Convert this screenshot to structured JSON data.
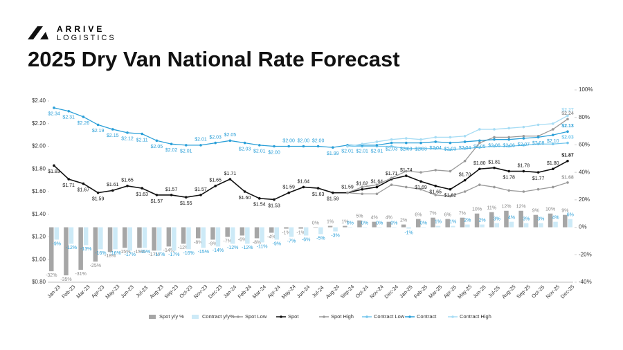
{
  "logo": {
    "line1": "ARRIVE",
    "line2": "LOGISTICS"
  },
  "chart_data": {
    "type": "combo",
    "title": "2025 Dry Van National Rate Forecast",
    "categories": [
      "Jan-23",
      "Feb-23",
      "Mar-23",
      "Apr-23",
      "May-23",
      "Jun-23",
      "Jul-23",
      "Aug-23",
      "Sep-23",
      "Oct-23",
      "Nov-23",
      "Dec-23",
      "Jan-24",
      "Feb-24",
      "Mar-24",
      "Apr-24",
      "May-24",
      "Jun-24",
      "Jul-24",
      "Aug-24",
      "Sep-24",
      "Oct-24",
      "Nov-24",
      "Dec-24",
      "Jan-25",
      "Feb-25",
      "Mar-25",
      "Apr-25",
      "May-25",
      "Jun-25",
      "Jul-25",
      "Aug-25",
      "Sep-25",
      "Oct-25",
      "Nov-25",
      "Dec-25"
    ],
    "ylim": [
      0.8,
      2.4
    ],
    "yticks": [
      {
        "value": 0.8,
        "label": "$0.80"
      },
      {
        "value": 1.0,
        "label": "$1.00"
      },
      {
        "value": 1.2,
        "label": "$1.20"
      },
      {
        "value": 1.4,
        "label": "$1.40"
      },
      {
        "value": 1.6,
        "label": "$1.60"
      },
      {
        "value": 1.8,
        "label": "$1.80"
      },
      {
        "value": 2.0,
        "label": "$2.00"
      },
      {
        "value": 2.2,
        "label": "$2.20"
      },
      {
        "value": 2.4,
        "label": "$2.40"
      }
    ],
    "y2lim": [
      -40,
      100
    ],
    "y2ticks": [
      {
        "value": -40,
        "label": "-40%"
      },
      {
        "value": -20,
        "label": "-20%"
      },
      {
        "value": 0,
        "label": "0%"
      },
      {
        "value": 20,
        "label": "20%"
      },
      {
        "value": 40,
        "label": "40%"
      },
      {
        "value": 60,
        "label": "60%"
      },
      {
        "value": 80,
        "label": "80%"
      },
      {
        "value": 100,
        "label": "100%"
      }
    ],
    "series": [
      {
        "name": "Spot y/y %",
        "kind": "bar",
        "axis": "y2",
        "color": "#a6a6a6",
        "values": [
          -32,
          -35,
          -31,
          -25,
          -18,
          -15,
          -15,
          -17,
          -14,
          -12,
          -8,
          -9,
          -7,
          -6,
          -8,
          -4,
          -1,
          -1,
          0,
          1,
          1,
          5,
          4,
          4,
          2,
          6,
          7,
          6,
          7,
          10,
          11,
          12,
          12,
          9,
          10,
          9
        ],
        "value_labels": [
          "-32%",
          "-35%",
          "-31%",
          "-25%",
          "-18%",
          "-15%",
          "-15%",
          "-17%",
          "-14%",
          "-12%",
          "-8%",
          "-9%",
          "-7%",
          "-6%",
          "-8%",
          "-4%",
          "-1%",
          "-1%",
          "0%",
          "1%",
          "1%",
          "5%",
          "4%",
          "4%",
          "2%",
          "6%",
          "7%",
          "6%",
          "7%",
          "10%",
          "11%",
          "12%",
          "12%",
          "9%",
          "10%",
          "9%"
        ]
      },
      {
        "name": "Contract y/y%",
        "kind": "bar",
        "axis": "y2",
        "color": "#cdeaf7",
        "values": [
          -9,
          -12,
          -13,
          -16,
          -16,
          -17,
          -15,
          -17,
          -17,
          -16,
          -15,
          -14,
          -12,
          -12,
          -11,
          -9,
          -7,
          -6,
          -5,
          -3,
          0,
          0,
          0,
          0,
          -1,
          0,
          1,
          1,
          2,
          2,
          3,
          4,
          3,
          3,
          4,
          6
        ],
        "value_labels": [
          "-9%",
          "-12%",
          "-13%",
          "-16%",
          "-16%",
          "-17%",
          "-15%",
          "-17%",
          "-17%",
          "-16%",
          "-15%",
          "-14%",
          "-12%",
          "-12%",
          "-11%",
          "-9%",
          "-7%",
          "-6%",
          "-5%",
          "-3%",
          "0%",
          "0%",
          "0%",
          "0%",
          "-1%",
          "0%",
          "1%",
          "1%",
          "2%",
          "2%",
          "3%",
          "4%",
          "3%",
          "3%",
          "4%",
          "6%"
        ]
      },
      {
        "name": "Spot Low",
        "kind": "line",
        "color": "#9a9a9a",
        "values": [
          null,
          null,
          null,
          null,
          null,
          null,
          null,
          null,
          null,
          null,
          null,
          null,
          null,
          null,
          null,
          null,
          null,
          null,
          null,
          null,
          1.59,
          1.58,
          1.58,
          1.66,
          1.64,
          1.62,
          1.57,
          1.56,
          1.6,
          1.66,
          1.64,
          1.61,
          1.6,
          1.62,
          1.64,
          1.68
        ],
        "value_labels": [
          null,
          null,
          null,
          null,
          null,
          null,
          null,
          null,
          null,
          null,
          null,
          null,
          null,
          null,
          null,
          null,
          null,
          null,
          null,
          null,
          null,
          null,
          null,
          null,
          null,
          null,
          null,
          null,
          null,
          null,
          null,
          null,
          null,
          null,
          null,
          "$1.68"
        ]
      },
      {
        "name": "Spot",
        "kind": "line",
        "color": "#111111",
        "values": [
          1.83,
          1.71,
          1.67,
          1.59,
          1.61,
          1.65,
          1.63,
          1.57,
          1.57,
          1.55,
          1.57,
          1.65,
          1.71,
          1.6,
          1.54,
          1.53,
          1.59,
          1.64,
          1.63,
          1.59,
          1.59,
          1.62,
          1.64,
          1.71,
          1.74,
          1.69,
          1.65,
          1.62,
          1.7,
          1.8,
          1.81,
          1.78,
          1.78,
          1.77,
          1.8,
          1.87
        ],
        "value_labels": [
          "$1.83",
          "$1.71",
          "$1.67",
          "$1.59",
          "$1.61",
          "$1.65",
          "$1.63",
          "$1.57",
          "$1.57",
          "$1.55",
          "$1.57",
          "$1.65",
          "$1.71",
          "$1.60",
          "$1.54",
          "$1.53",
          "$1.59",
          "$1.64",
          "$1.63",
          "$1.59",
          "$1.59",
          "$1.62",
          "$1.64",
          "$1.71",
          "$1.74",
          "$1.69",
          "$1.65",
          "$1.62",
          "$1.70",
          "$1.80",
          "$1.81",
          "$1.78",
          "$1.78",
          "$1.77",
          "$1.80",
          "$1.87"
        ]
      },
      {
        "name": "Spot High",
        "kind": "line",
        "color": "#9a9a9a",
        "values": [
          null,
          null,
          null,
          null,
          null,
          null,
          null,
          null,
          null,
          null,
          null,
          null,
          null,
          null,
          null,
          null,
          null,
          null,
          null,
          null,
          1.59,
          1.64,
          1.66,
          1.72,
          1.78,
          1.77,
          1.79,
          1.78,
          1.87,
          2.03,
          2.08,
          2.08,
          2.09,
          2.09,
          2.15,
          2.24
        ],
        "value_labels": [
          null,
          null,
          null,
          null,
          null,
          null,
          null,
          null,
          null,
          null,
          null,
          null,
          null,
          null,
          null,
          null,
          null,
          null,
          null,
          null,
          null,
          null,
          null,
          null,
          null,
          null,
          null,
          null,
          null,
          null,
          null,
          null,
          null,
          null,
          null,
          "$2.24"
        ]
      },
      {
        "name": "Contract Low",
        "kind": "line",
        "color": "#74c6ec",
        "values": [
          null,
          null,
          null,
          null,
          null,
          null,
          null,
          null,
          null,
          null,
          null,
          null,
          null,
          null,
          null,
          null,
          null,
          null,
          null,
          null,
          2.0,
          2.0,
          2.0,
          2.0,
          1.98,
          1.98,
          1.98,
          1.97,
          1.98,
          1.99,
          2.0,
          2.0,
          2.01,
          2.02,
          2.02,
          2.03
        ],
        "value_labels": [
          null,
          null,
          null,
          null,
          null,
          null,
          null,
          null,
          null,
          null,
          null,
          null,
          null,
          null,
          null,
          null,
          null,
          null,
          null,
          null,
          null,
          null,
          null,
          null,
          null,
          null,
          null,
          null,
          null,
          null,
          null,
          null,
          null,
          null,
          null,
          "$2.03"
        ]
      },
      {
        "name": "Contract",
        "kind": "line",
        "color": "#2a9fd8",
        "values": [
          2.34,
          2.31,
          2.26,
          2.19,
          2.15,
          2.12,
          2.11,
          2.05,
          2.02,
          2.01,
          2.01,
          2.03,
          2.05,
          2.03,
          2.01,
          2.0,
          2.0,
          2.0,
          2.0,
          1.99,
          2.01,
          2.01,
          2.01,
          2.03,
          2.03,
          2.03,
          2.04,
          2.03,
          2.04,
          2.05,
          2.06,
          2.06,
          2.07,
          2.08,
          2.1,
          2.13
        ],
        "value_labels": [
          "$2.34",
          "$2.31",
          "$2.26",
          "$2.19",
          "$2.15",
          "$2.12",
          "$2.11",
          "$2.05",
          "$2.02",
          "$2.01",
          "$2.01",
          "$2.03",
          "$2.05",
          "$2.03",
          "$2.01",
          "$2.00",
          "$2.00",
          "$2.00",
          "$2.00",
          "$1.99",
          "$2.01",
          "$2.01",
          "$2.01",
          "$2.03",
          "$2.03",
          "$2.03",
          "$2.04",
          "$2.03",
          "$2.04",
          "$2.05",
          "$2.06",
          "$2.06",
          "$2.07",
          "$2.08",
          "$2.10",
          "$2.13"
        ]
      },
      {
        "name": "Contract High",
        "kind": "line",
        "color": "#a6dcf4",
        "values": [
          null,
          null,
          null,
          null,
          null,
          null,
          null,
          null,
          null,
          null,
          null,
          null,
          null,
          null,
          null,
          null,
          null,
          null,
          null,
          null,
          2.0,
          2.02,
          2.04,
          2.06,
          2.07,
          2.06,
          2.08,
          2.08,
          2.09,
          2.15,
          2.15,
          2.16,
          2.17,
          2.19,
          2.2,
          2.27
        ],
        "value_labels": [
          null,
          null,
          null,
          null,
          null,
          null,
          null,
          null,
          null,
          null,
          null,
          null,
          null,
          null,
          null,
          null,
          null,
          null,
          null,
          null,
          null,
          null,
          null,
          null,
          null,
          null,
          null,
          null,
          null,
          null,
          null,
          null,
          null,
          null,
          null,
          "$2.27"
        ]
      }
    ]
  }
}
